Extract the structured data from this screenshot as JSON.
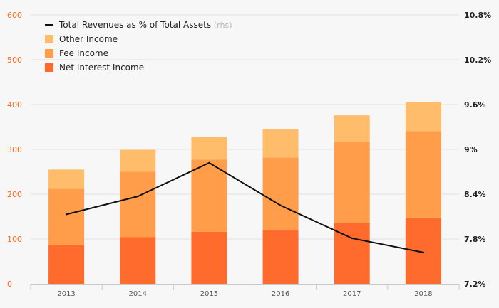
{
  "chart_data": {
    "type": "bar",
    "categories": [
      "2013",
      "2014",
      "2015",
      "2016",
      "2017",
      "2018"
    ],
    "series": [
      {
        "name": "Net Interest Income",
        "values": [
          86,
          104,
          116,
          120,
          135,
          148
        ],
        "color": "#ff6b2c"
      },
      {
        "name": "Fee Income",
        "values": [
          126,
          146,
          161,
          162,
          182,
          193
        ],
        "color": "#ff9d4a"
      },
      {
        "name": "Other Income",
        "values": [
          43,
          49,
          51,
          63,
          59,
          64
        ],
        "color": "#ffbd6b"
      }
    ],
    "line_series": {
      "name": "Total Revenues as % of Total Assets",
      "name_suffix": "(rhs)",
      "values": [
        8.13,
        8.37,
        8.82,
        8.25,
        7.81,
        7.62
      ],
      "color": "#111111"
    },
    "y_left": {
      "ylim": [
        0,
        600
      ],
      "ticks": [
        "0",
        "100",
        "200",
        "300",
        "400",
        "500",
        "600"
      ],
      "color": "#f26a21"
    },
    "y_right": {
      "ylim": [
        7.2,
        10.8
      ],
      "ticks": [
        "7.2%",
        "7.8%",
        "8.4%",
        "9%",
        "9.6%",
        "10.2%",
        "10.8%"
      ],
      "color": "#222222"
    },
    "grid": true,
    "legend_position": "top-left",
    "stacked": true
  }
}
